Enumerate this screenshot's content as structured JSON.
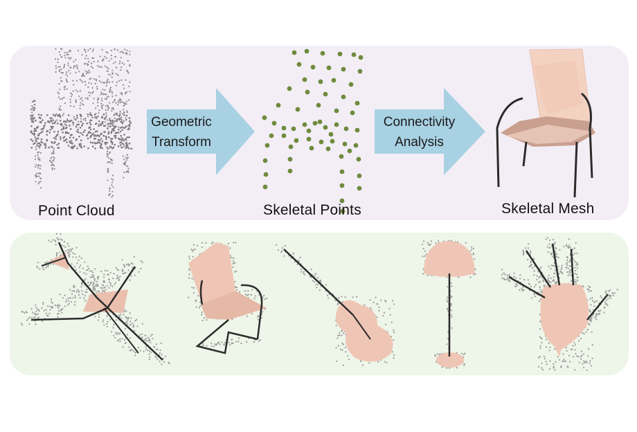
{
  "pipeline": {
    "point_cloud_label": "Point Cloud",
    "transform_line1": "Geometric",
    "transform_line2": "Transform",
    "skeletal_points_label": "Skeletal Points",
    "connectivity_line1": "Connectivity",
    "connectivity_line2": "Analysis",
    "skeletal_mesh_label": "Skeletal Mesh"
  },
  "colors": {
    "top_panel": "#f3eef6",
    "bottom_panel": "#eef5e9",
    "arrow": "#a8d1e3",
    "skeletal_point": "#6e8b3d",
    "mesh": "#f0c9b8",
    "skeleton_line": "#2b2b2b",
    "cloud_point": "#8a8a8a"
  },
  "examples": [
    "airplane",
    "chair",
    "guitar",
    "lamp",
    "hand"
  ]
}
